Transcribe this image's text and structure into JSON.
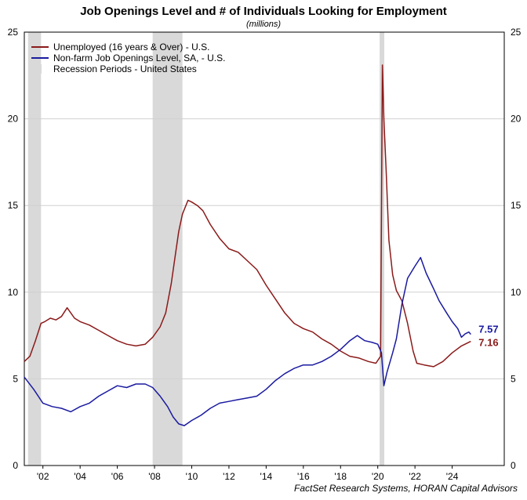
{
  "chart_data": {
    "type": "line",
    "title": "Job Openings Level and # of Individuals Looking for Employment",
    "subtitle": "(millions)",
    "source": "FactSet Research Systems, HORAN Capital Advisors",
    "ylim": [
      0,
      25
    ],
    "y_ticks": [
      0,
      5,
      10,
      15,
      20,
      25
    ],
    "y_tick_labels": [
      "0",
      "5",
      "10",
      "15",
      "20",
      "25"
    ],
    "xlim": [
      2001.0,
      2026.8
    ],
    "x_ticks": [
      2002,
      2004,
      2006,
      2008,
      2010,
      2012,
      2014,
      2016,
      2018,
      2020,
      2022,
      2024
    ],
    "x_tick_labels": [
      "'02",
      "'04",
      "'06",
      "'08",
      "'10",
      "'12",
      "'14",
      "'16",
      "'18",
      "'20",
      "'22",
      "'24"
    ],
    "grid": true,
    "legend_position": "top-left",
    "recessions": [
      {
        "start": 2001.2,
        "end": 2001.9
      },
      {
        "start": 2007.9,
        "end": 2009.5
      },
      {
        "start": 2020.1,
        "end": 2020.35
      }
    ],
    "series": [
      {
        "name": "Unemployed (16 years & Over) - U.S.",
        "color": "#8b1a1a",
        "end_label": "7.16",
        "x": [
          2001.0,
          2001.3,
          2001.6,
          2001.9,
          2002.1,
          2002.4,
          2002.7,
          2003.0,
          2003.3,
          2003.5,
          2003.7,
          2004.0,
          2004.5,
          2005.0,
          2005.5,
          2006.0,
          2006.5,
          2007.0,
          2007.5,
          2007.9,
          2008.3,
          2008.6,
          2008.9,
          2009.1,
          2009.3,
          2009.5,
          2009.8,
          2010.0,
          2010.3,
          2010.6,
          2011.0,
          2011.5,
          2012.0,
          2012.5,
          2013.0,
          2013.5,
          2014.0,
          2014.5,
          2015.0,
          2015.5,
          2016.0,
          2016.5,
          2017.0,
          2017.5,
          2018.0,
          2018.5,
          2019.0,
          2019.5,
          2019.9,
          2020.15,
          2020.25,
          2020.33,
          2020.45,
          2020.6,
          2020.8,
          2021.0,
          2021.3,
          2021.6,
          2021.9,
          2022.1,
          2022.5,
          2023.0,
          2023.5,
          2024.0,
          2024.5,
          2025.0
        ],
        "values": [
          6.0,
          6.3,
          7.2,
          8.2,
          8.3,
          8.5,
          8.4,
          8.6,
          9.1,
          8.8,
          8.5,
          8.3,
          8.1,
          7.8,
          7.5,
          7.2,
          7.0,
          6.9,
          7.0,
          7.4,
          8.0,
          8.8,
          10.5,
          12.0,
          13.5,
          14.5,
          15.3,
          15.2,
          15.0,
          14.7,
          13.9,
          13.1,
          12.5,
          12.3,
          11.8,
          11.3,
          10.4,
          9.6,
          8.8,
          8.2,
          7.9,
          7.7,
          7.3,
          7.0,
          6.6,
          6.3,
          6.2,
          6.0,
          5.9,
          6.3,
          23.1,
          20.0,
          17.0,
          13.0,
          11.0,
          10.1,
          9.5,
          8.2,
          6.6,
          5.9,
          5.8,
          5.7,
          6.0,
          6.5,
          6.9,
          7.16
        ]
      },
      {
        "name": "Non-farm Job Openings Level, SA, - U.S.",
        "color": "#1a1aa0",
        "end_label": "7.57",
        "x": [
          2001.0,
          2001.5,
          2002.0,
          2002.5,
          2003.0,
          2003.5,
          2004.0,
          2004.5,
          2005.0,
          2005.5,
          2006.0,
          2006.5,
          2007.0,
          2007.5,
          2007.9,
          2008.3,
          2008.7,
          2009.0,
          2009.3,
          2009.6,
          2010.0,
          2010.5,
          2011.0,
          2011.5,
          2012.0,
          2012.5,
          2013.0,
          2013.5,
          2014.0,
          2014.5,
          2015.0,
          2015.5,
          2016.0,
          2016.5,
          2017.0,
          2017.5,
          2018.0,
          2018.5,
          2018.9,
          2019.3,
          2019.7,
          2020.0,
          2020.2,
          2020.33,
          2020.5,
          2020.8,
          2021.0,
          2021.3,
          2021.6,
          2022.0,
          2022.3,
          2022.6,
          2023.0,
          2023.3,
          2023.7,
          2024.0,
          2024.3,
          2024.5,
          2024.7,
          2024.9,
          2025.0
        ],
        "values": [
          5.1,
          4.4,
          3.6,
          3.4,
          3.3,
          3.1,
          3.4,
          3.6,
          4.0,
          4.3,
          4.6,
          4.5,
          4.7,
          4.7,
          4.5,
          4.0,
          3.4,
          2.8,
          2.4,
          2.3,
          2.6,
          2.9,
          3.3,
          3.6,
          3.7,
          3.8,
          3.9,
          4.0,
          4.4,
          4.9,
          5.3,
          5.6,
          5.8,
          5.8,
          6.0,
          6.3,
          6.7,
          7.2,
          7.5,
          7.2,
          7.1,
          7.0,
          6.5,
          4.6,
          5.4,
          6.5,
          7.3,
          9.3,
          10.8,
          11.5,
          12.0,
          11.1,
          10.2,
          9.5,
          8.8,
          8.3,
          7.9,
          7.4,
          7.6,
          7.7,
          7.57
        ]
      }
    ],
    "recession_legend": "Recession Periods - United States"
  }
}
